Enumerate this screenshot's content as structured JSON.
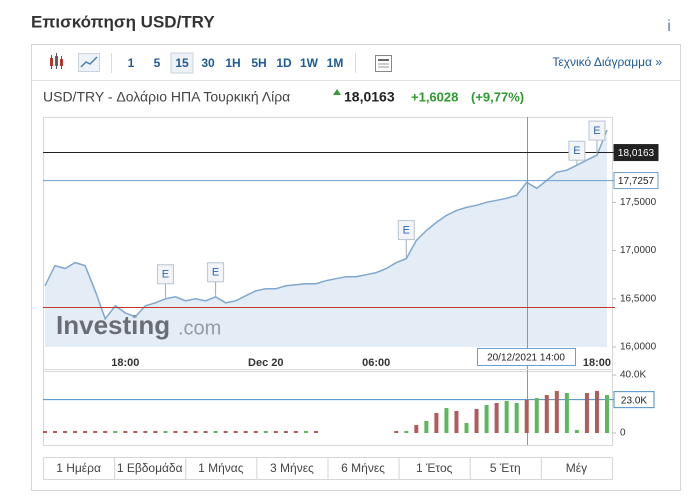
{
  "header": {
    "title": "Επισκόπηση USD/TRY",
    "info": "i"
  },
  "toolbar": {
    "intervals": [
      "1",
      "5",
      "15",
      "30",
      "1H",
      "5H",
      "1D",
      "1W",
      "1M"
    ],
    "selected": "15",
    "link": "Τεχνικό Διάγραμμα »"
  },
  "quote": {
    "name": "USD/TRY - Δολάριο ΗΠΑ Τουρκική Λίρα",
    "price": "18,0163",
    "change": "+1,6028",
    "change_percent": "(+9,77%)"
  },
  "watermark": {
    "brand": "Investing",
    "suffix": ".com"
  },
  "crosshair_label": "20/12/2021 14:00",
  "chart_data": [
    {
      "type": "area",
      "categories": [
        null,
        null,
        null,
        null,
        null,
        null,
        null,
        null,
        "18:00",
        null,
        null,
        null,
        null,
        null,
        null,
        null,
        null,
        null,
        null,
        null,
        null,
        null,
        "Dec 20",
        null,
        null,
        null,
        null,
        null,
        null,
        null,
        null,
        null,
        null,
        "06:00",
        null,
        null,
        null,
        null,
        null,
        null,
        null,
        null,
        null,
        null,
        null,
        null,
        null,
        null,
        null,
        null,
        null,
        null,
        null,
        null,
        null,
        "18:00",
        null
      ],
      "values": [
        16.635,
        16.844,
        16.813,
        16.875,
        16.844,
        16.583,
        16.292,
        16.427,
        16.354,
        16.313,
        16.427,
        16.458,
        16.5,
        16.521,
        16.479,
        16.5,
        16.479,
        16.521,
        16.458,
        16.479,
        16.531,
        16.583,
        16.604,
        16.604,
        16.635,
        16.646,
        16.656,
        16.656,
        16.688,
        16.708,
        16.729,
        16.729,
        16.75,
        16.771,
        16.813,
        16.875,
        16.917,
        17.104,
        17.208,
        17.292,
        17.365,
        17.417,
        17.448,
        17.469,
        17.5,
        17.521,
        17.542,
        17.573,
        17.708,
        17.646,
        17.729,
        17.813,
        17.833,
        17.885,
        17.938,
        17.99,
        18.25
      ],
      "color": "#7fa7cf",
      "fill": "#e4edf6",
      "ylim": [
        16,
        18.385
      ],
      "yticks": [
        {
          "value": 16,
          "label": "16,0000"
        },
        {
          "value": 16.5,
          "label": "16,5000"
        },
        {
          "value": 17,
          "label": "17,0000"
        },
        {
          "value": 17.5,
          "label": "17,5000"
        }
      ],
      "reference_lines": [
        {
          "value": 18.0163,
          "label": "18,0163",
          "color": "#222222"
        },
        {
          "value": 17.7257,
          "label": "17,7257",
          "color": "#6a9fcf"
        },
        {
          "value": 16.41,
          "color": "#c0392b"
        }
      ],
      "events": [
        "E",
        "E",
        "E",
        "E",
        "E"
      ]
    },
    {
      "type": "bar",
      "values": [
        1400,
        1400,
        1400,
        1400,
        1400,
        1400,
        1400,
        1400,
        1400,
        1400,
        1400,
        1400,
        1400,
        1400,
        1400,
        1400,
        1400,
        1400,
        1400,
        1400,
        1400,
        1400,
        1400,
        1400,
        1400,
        1400,
        1400,
        1400,
        0,
        0,
        0,
        0,
        0,
        0,
        0,
        1400,
        1400,
        5500,
        8300,
        13800,
        17200,
        15200,
        6900,
        16600,
        19300,
        20700,
        22100,
        20700,
        22800,
        24100,
        26200,
        29000,
        27600,
        2100,
        27600,
        29000,
        26200
      ],
      "bar_colors": [
        "#b35a5a",
        "#b35a5a",
        "#b35a5a",
        "#b35a5a",
        "#b35a5a",
        "#b35a5a",
        "#b35a5a",
        "#5cb85c",
        "#b35a5a",
        "#b35a5a",
        "#b35a5a",
        "#b35a5a",
        "#5cb85c",
        "#b35a5a",
        "#b35a5a",
        "#b35a5a",
        "#b35a5a",
        "#5cb85c",
        "#b35a5a",
        "#b35a5a",
        "#b35a5a",
        "#b35a5a",
        "#5cb85c",
        "#b35a5a",
        "#b35a5a",
        "#b35a5a",
        "#5cb85c",
        "#b35a5a",
        "#b35a5a",
        "#b35a5a",
        "#b35a5a",
        "#b35a5a",
        "#b35a5a",
        "#b35a5a",
        "#b35a5a",
        "#b35a5a",
        "#5cb85c",
        "#b35a5a",
        "#5cb85c",
        "#b35a5a",
        "#5cb85c",
        "#b35a5a",
        "#5cb85c",
        "#b35a5a",
        "#5cb85c",
        "#b35a5a",
        "#5cb85c",
        "#5cb85c",
        "#b35a5a",
        "#5cb85c",
        "#b35a5a",
        "#b35a5a",
        "#5cb85c",
        "#5cb85c",
        "#b35a5a",
        "#b35a5a",
        "#5cb85c"
      ],
      "ylim": [
        0,
        40000
      ],
      "yticks": [
        0,
        {
          "value": 40000,
          "label": "40.0K"
        }
      ],
      "reference_lines": [
        {
          "value": 23000,
          "label": "23.0K",
          "color": "#4a8bc2"
        }
      ]
    }
  ],
  "ranges": [
    "1 Ημέρα",
    "1 Εβδομάδα",
    "1 Μήνας",
    "3 Μήνες",
    "6 Μήνες",
    "1 Έτος",
    "5 Έτη",
    "Μέγ"
  ]
}
